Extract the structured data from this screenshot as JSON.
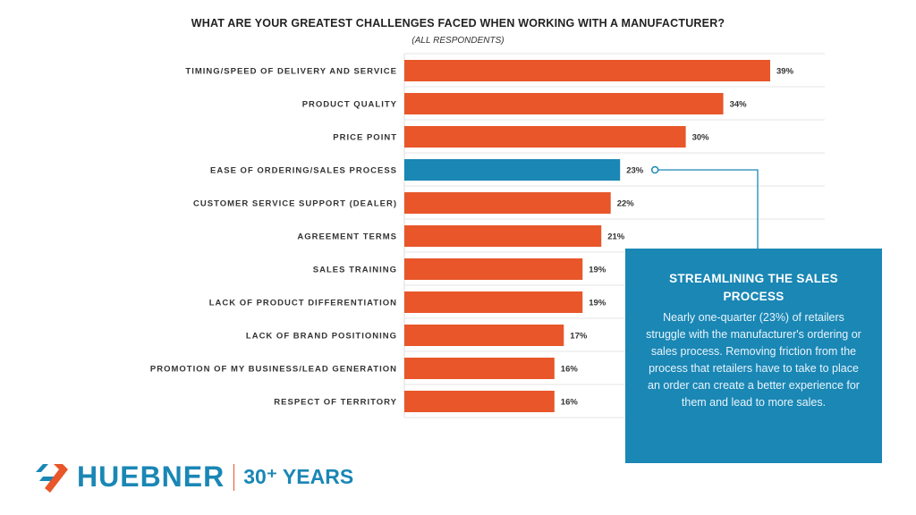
{
  "chart_data": {
    "type": "bar",
    "orientation": "horizontal",
    "title": "WHAT ARE YOUR GREATEST CHALLENGES FACED WHEN WORKING WITH A MANUFACTURER?",
    "subtitle": "(ALL RESPONDENTS)",
    "categories": [
      "TIMING/SPEED OF DELIVERY AND SERVICE",
      "PRODUCT QUALITY",
      "PRICE POINT",
      "EASE OF ORDERING/SALES PROCESS",
      "CUSTOMER SERVICE SUPPORT (DEALER)",
      "AGREEMENT TERMS",
      "SALES TRAINING",
      "LACK OF PRODUCT DIFFERENTIATION",
      "LACK OF BRAND POSITIONING",
      "PROMOTION OF MY BUSINESS/LEAD GENERATION",
      "RESPECT OF TERRITORY"
    ],
    "values": [
      39,
      34,
      30,
      23,
      22,
      21,
      19,
      19,
      17,
      16,
      16
    ],
    "value_labels": [
      "39%",
      "34%",
      "30%",
      "23%",
      "22%",
      "21%",
      "19%",
      "19%",
      "17%",
      "16%",
      "16%"
    ],
    "highlight_index": 3,
    "colors": {
      "default": "#e8562a",
      "highlight": "#1a87b5"
    },
    "xlim": [
      0,
      45
    ],
    "grid": true
  },
  "callout": {
    "title": "STREAMLINING THE SALES PROCESS",
    "body": "Nearly one-quarter (23%) of retailers struggle with the manufacturer's ordering or sales process. Removing friction from the process that retailers have to take to place an order can create a better experience for them and lead to more sales."
  },
  "logo": {
    "brand": "HUEBNER",
    "tagline": "30⁺ YEARS"
  }
}
